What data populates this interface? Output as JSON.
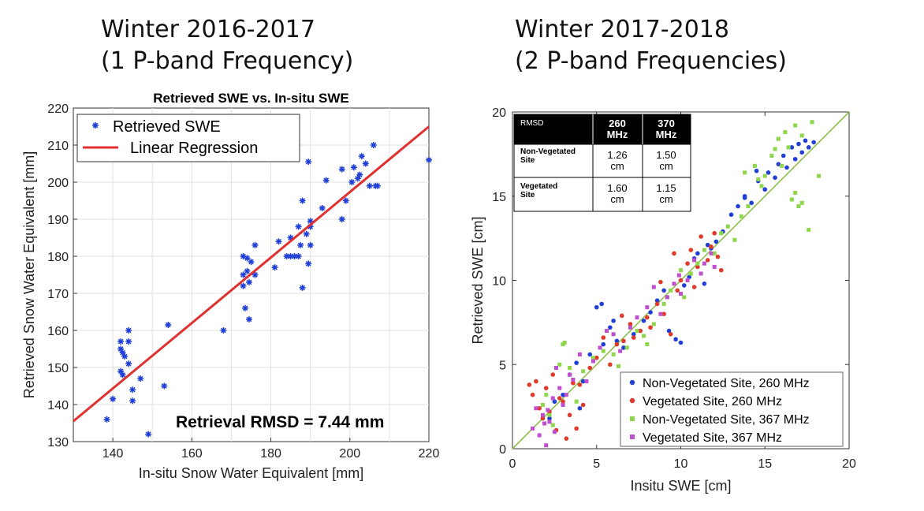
{
  "headings": {
    "left_line1": "Winter 2016-2017",
    "left_line2": "(1 P-band Frequency)",
    "right_line1": "Winter 2017-2018",
    "right_line2": "(2 P-band Frequencies)"
  },
  "colors": {
    "blue": "#1f3fd6",
    "red": "#e03a2a",
    "green": "#8ed64a",
    "purple": "#c04fd0",
    "regression": "#e03030",
    "one_to_one": "#8fbf4a"
  },
  "chart_data": [
    {
      "type": "scatter",
      "title": "Retrieved SWE vs. In-situ SWE",
      "xlabel": "In-situ Snow Water Equivalent [mm]",
      "ylabel": "Retrieved Snow Water Equivalent [mm]",
      "xlim": [
        130,
        220
      ],
      "ylim": [
        130,
        220
      ],
      "xticks": [
        140,
        160,
        180,
        200,
        220
      ],
      "yticks": [
        130,
        140,
        150,
        160,
        170,
        180,
        190,
        200,
        210,
        220
      ],
      "grid": true,
      "legend_position": "top-left",
      "annotation": "Retrieval RMSD = 7.44 mm",
      "series": [
        {
          "name": "Retrieved SWE",
          "marker": "star",
          "points": [
            [
              138.5,
              136
            ],
            [
              140,
              141.5
            ],
            [
              142,
              157
            ],
            [
              142,
              155
            ],
            [
              142.5,
              154
            ],
            [
              142,
              149
            ],
            [
              142.5,
              148
            ],
            [
              143,
              153
            ],
            [
              144,
              160
            ],
            [
              144,
              157
            ],
            [
              144,
              151
            ],
            [
              145,
              144
            ],
            [
              145,
              141
            ],
            [
              147,
              147
            ],
            [
              149,
              132
            ],
            [
              153,
              145
            ],
            [
              154,
              161.5
            ],
            [
              168,
              160
            ],
            [
              173,
              180
            ],
            [
              173,
              175
            ],
            [
              173,
              172
            ],
            [
              173.5,
              166
            ],
            [
              174,
              179.5
            ],
            [
              174,
              176
            ],
            [
              174.5,
              173
            ],
            [
              174.5,
              163
            ],
            [
              175,
              178.5
            ],
            [
              176,
              175
            ],
            [
              176,
              183
            ],
            [
              181,
              177
            ],
            [
              182,
              184
            ],
            [
              184,
              180
            ],
            [
              185,
              180
            ],
            [
              185,
              185
            ],
            [
              186,
              180
            ],
            [
              187,
              180
            ],
            [
              187,
              188
            ],
            [
              187.5,
              183
            ],
            [
              188,
              195
            ],
            [
              188,
              171.5
            ],
            [
              189,
              186
            ],
            [
              189.5,
              205.5
            ],
            [
              189.5,
              178
            ],
            [
              190,
              188
            ],
            [
              190,
              183
            ],
            [
              190,
              189.5
            ],
            [
              193,
              193
            ],
            [
              194,
              200.5
            ],
            [
              198,
              203.5
            ],
            [
              198,
              190
            ],
            [
              199,
              195
            ],
            [
              200.5,
              200
            ],
            [
              201,
              204
            ],
            [
              202,
              201
            ],
            [
              202.5,
              202
            ],
            [
              203,
              207
            ],
            [
              204,
              205
            ],
            [
              205,
              199
            ],
            [
              206,
              210
            ],
            [
              206.5,
              199
            ],
            [
              207,
              199
            ],
            [
              220,
              206
            ]
          ]
        },
        {
          "name": "Linear Regression",
          "type": "line",
          "points": [
            [
              130,
              135.5
            ],
            [
              220,
              215
            ]
          ]
        }
      ]
    },
    {
      "type": "scatter",
      "xlabel": "Insitu SWE [cm]",
      "ylabel": "Retrieved SWE [cm]",
      "xlim": [
        0,
        20
      ],
      "ylim": [
        0,
        20
      ],
      "xticks": [
        0,
        5,
        10,
        15,
        20
      ],
      "yticks": [
        0,
        5,
        10,
        15,
        20
      ],
      "grid": false,
      "legend_position": "bottom-right",
      "rmsd_table": {
        "corner_label": "RMSD",
        "col_headers": [
          "260 MHz",
          "370 MHz"
        ],
        "rows": [
          {
            "label": "Non-Vegetated Site",
            "values": [
              "1.26 cm",
              "1.50 cm"
            ]
          },
          {
            "label": "Vegetated Site",
            "values": [
              "1.60 cm",
              "1.15 cm"
            ]
          }
        ]
      },
      "series": [
        {
          "name": "Non-Vegetated Site, 260 MHz",
          "marker": "circle",
          "points": [
            [
              2.2,
              1.8
            ],
            [
              2.5,
              2.8
            ],
            [
              3.0,
              3.2
            ],
            [
              3.4,
              4.4
            ],
            [
              3.8,
              5.1
            ],
            [
              4.0,
              2.4
            ],
            [
              4.2,
              4.0
            ],
            [
              4.6,
              5.6
            ],
            [
              5.0,
              8.4
            ],
            [
              5.3,
              8.6
            ],
            [
              5.4,
              6.2
            ],
            [
              5.8,
              7.2
            ],
            [
              6.0,
              7.6
            ],
            [
              6.2,
              6.4
            ],
            [
              6.6,
              6.0
            ],
            [
              7.2,
              6.8
            ],
            [
              7.8,
              7.6
            ],
            [
              8.2,
              8.1
            ],
            [
              8.6,
              8.8
            ],
            [
              9.0,
              9.4
            ],
            [
              9.3,
              7.0
            ],
            [
              9.7,
              6.5
            ],
            [
              10.0,
              6.3
            ],
            [
              10.2,
              9.7
            ],
            [
              10.5,
              10.2
            ],
            [
              10.8,
              11.3
            ],
            [
              11.0,
              11.6
            ],
            [
              11.4,
              9.8
            ],
            [
              11.6,
              12.1
            ],
            [
              11.8,
              11.9
            ],
            [
              12.1,
              12.3
            ],
            [
              12.5,
              12.9
            ],
            [
              13.0,
              13.9
            ],
            [
              13.4,
              14.4
            ],
            [
              13.8,
              14.9
            ],
            [
              14.2,
              14.6
            ],
            [
              14.6,
              15.9
            ],
            [
              15.0,
              15.4
            ],
            [
              15.2,
              16.4
            ],
            [
              15.6,
              16.1
            ],
            [
              15.8,
              16.9
            ],
            [
              16.1,
              17.4
            ],
            [
              16.3,
              16.7
            ],
            [
              16.6,
              17.9
            ],
            [
              16.8,
              17.2
            ],
            [
              17.0,
              18.1
            ],
            [
              17.2,
              17.6
            ],
            [
              17.4,
              18.3
            ],
            [
              17.6,
              17.9
            ],
            [
              17.9,
              18.2
            ],
            [
              14.5,
              16.5
            ],
            [
              13.8,
              15.0
            ]
          ]
        },
        {
          "name": "Vegetated Site, 260 MHz",
          "marker": "circle",
          "points": [
            [
              1.0,
              3.8
            ],
            [
              1.2,
              3.2
            ],
            [
              1.4,
              4.0
            ],
            [
              1.6,
              2.4
            ],
            [
              1.8,
              1.8
            ],
            [
              2.0,
              3.6
            ],
            [
              2.2,
              2.2
            ],
            [
              2.4,
              4.4
            ],
            [
              2.6,
              1.1
            ],
            [
              2.8,
              3.0
            ],
            [
              3.0,
              2.8
            ],
            [
              3.2,
              0.6
            ],
            [
              3.4,
              2.0
            ],
            [
              3.8,
              1.2
            ],
            [
              4.0,
              3.8
            ],
            [
              4.2,
              2.6
            ],
            [
              5.0,
              5.4
            ],
            [
              5.4,
              6.6
            ],
            [
              5.8,
              5.0
            ],
            [
              6.2,
              6.2
            ],
            [
              6.6,
              6.4
            ],
            [
              7.0,
              7.4
            ],
            [
              7.2,
              6.6
            ],
            [
              7.6,
              7.0
            ],
            [
              8.0,
              7.8
            ],
            [
              8.2,
              7.2
            ],
            [
              8.6,
              8.6
            ],
            [
              9.0,
              8.0
            ],
            [
              9.4,
              6.8
            ],
            [
              9.8,
              9.4
            ],
            [
              10.0,
              10.0
            ],
            [
              10.4,
              11.0
            ],
            [
              10.6,
              11.8
            ],
            [
              10.8,
              9.6
            ],
            [
              11.0,
              10.8
            ],
            [
              11.2,
              12.6
            ],
            [
              11.6,
              11.2
            ],
            [
              11.8,
              12.0
            ],
            [
              12.2,
              11.4
            ],
            [
              12.4,
              10.6
            ],
            [
              9.6,
              11.6
            ],
            [
              8.8,
              9.9
            ],
            [
              6.5,
              7.9
            ],
            [
              4.6,
              4.8
            ],
            [
              3.6,
              3.9
            ],
            [
              12.0,
              12.8
            ]
          ]
        },
        {
          "name": "Non-Vegetated Site, 367 MHz",
          "marker": "square",
          "points": [
            [
              1.8,
              2.6
            ],
            [
              2.0,
              3.2
            ],
            [
              2.2,
              2.0
            ],
            [
              2.4,
              1.4
            ],
            [
              2.8,
              5.0
            ],
            [
              3.0,
              6.2
            ],
            [
              3.4,
              4.8
            ],
            [
              3.8,
              2.8
            ],
            [
              4.2,
              4.6
            ],
            [
              4.8,
              5.4
            ],
            [
              5.4,
              5.8
            ],
            [
              6.0,
              5.6
            ],
            [
              6.8,
              6.0
            ],
            [
              7.4,
              7.0
            ],
            [
              8.0,
              6.2
            ],
            [
              8.4,
              7.4
            ],
            [
              9.0,
              8.6
            ],
            [
              9.4,
              9.4
            ],
            [
              10.0,
              10.6
            ],
            [
              10.2,
              9.0
            ],
            [
              10.6,
              10.4
            ],
            [
              11.0,
              11.0
            ],
            [
              11.4,
              11.8
            ],
            [
              12.0,
              11.6
            ],
            [
              12.4,
              12.8
            ],
            [
              12.8,
              13.2
            ],
            [
              13.2,
              12.4
            ],
            [
              13.6,
              13.8
            ],
            [
              13.8,
              16.4
            ],
            [
              14.0,
              14.4
            ],
            [
              14.4,
              16.8
            ],
            [
              14.8,
              15.6
            ],
            [
              15.0,
              16.2
            ],
            [
              15.4,
              17.4
            ],
            [
              15.8,
              18.4
            ],
            [
              16.0,
              16.8
            ],
            [
              16.2,
              18.8
            ],
            [
              16.4,
              17.9
            ],
            [
              16.6,
              14.8
            ],
            [
              16.8,
              15.2
            ],
            [
              17.0,
              14.4
            ],
            [
              17.2,
              14.6
            ],
            [
              17.6,
              13.0
            ],
            [
              17.2,
              18.6
            ],
            [
              17.8,
              19.4
            ],
            [
              18.2,
              16.2
            ],
            [
              16.8,
              19.2
            ],
            [
              15.6,
              17.8
            ],
            [
              14.6,
              16.0
            ],
            [
              6.3,
              4.9
            ],
            [
              7.8,
              6.7
            ],
            [
              3.1,
              6.3
            ]
          ]
        },
        {
          "name": "Vegetated Site, 367 MHz",
          "marker": "square",
          "points": [
            [
              1.2,
              1.2
            ],
            [
              1.4,
              2.4
            ],
            [
              1.6,
              0.8
            ],
            [
              1.8,
              2.0
            ],
            [
              2.0,
              0.2
            ],
            [
              2.2,
              1.6
            ],
            [
              2.4,
              3.0
            ],
            [
              2.6,
              4.8
            ],
            [
              2.8,
              3.6
            ],
            [
              3.0,
              2.6
            ],
            [
              3.2,
              3.2
            ],
            [
              3.4,
              4.4
            ],
            [
              4.0,
              5.6
            ],
            [
              4.4,
              4.0
            ],
            [
              5.2,
              6.0
            ],
            [
              5.6,
              7.0
            ],
            [
              6.0,
              6.8
            ],
            [
              6.4,
              5.8
            ],
            [
              7.0,
              7.2
            ],
            [
              7.4,
              7.8
            ],
            [
              8.0,
              8.4
            ],
            [
              8.4,
              9.6
            ],
            [
              8.8,
              8.0
            ],
            [
              9.2,
              9.0
            ],
            [
              9.6,
              9.8
            ],
            [
              10.0,
              9.2
            ],
            [
              10.4,
              10.0
            ],
            [
              10.8,
              11.2
            ],
            [
              11.2,
              10.4
            ],
            [
              11.4,
              11.0
            ],
            [
              11.8,
              11.6
            ],
            [
              12.0,
              10.8
            ],
            [
              2.1,
              2.3
            ],
            [
              2.5,
              1.0
            ],
            [
              1.9,
              1.5
            ],
            [
              3.6,
              4.1
            ],
            [
              4.8,
              5.2
            ],
            [
              9.9,
              10.3
            ]
          ]
        },
        {
          "name": "",
          "type": "line",
          "points": [
            [
              0,
              0
            ],
            [
              20,
              20
            ]
          ]
        }
      ]
    }
  ]
}
